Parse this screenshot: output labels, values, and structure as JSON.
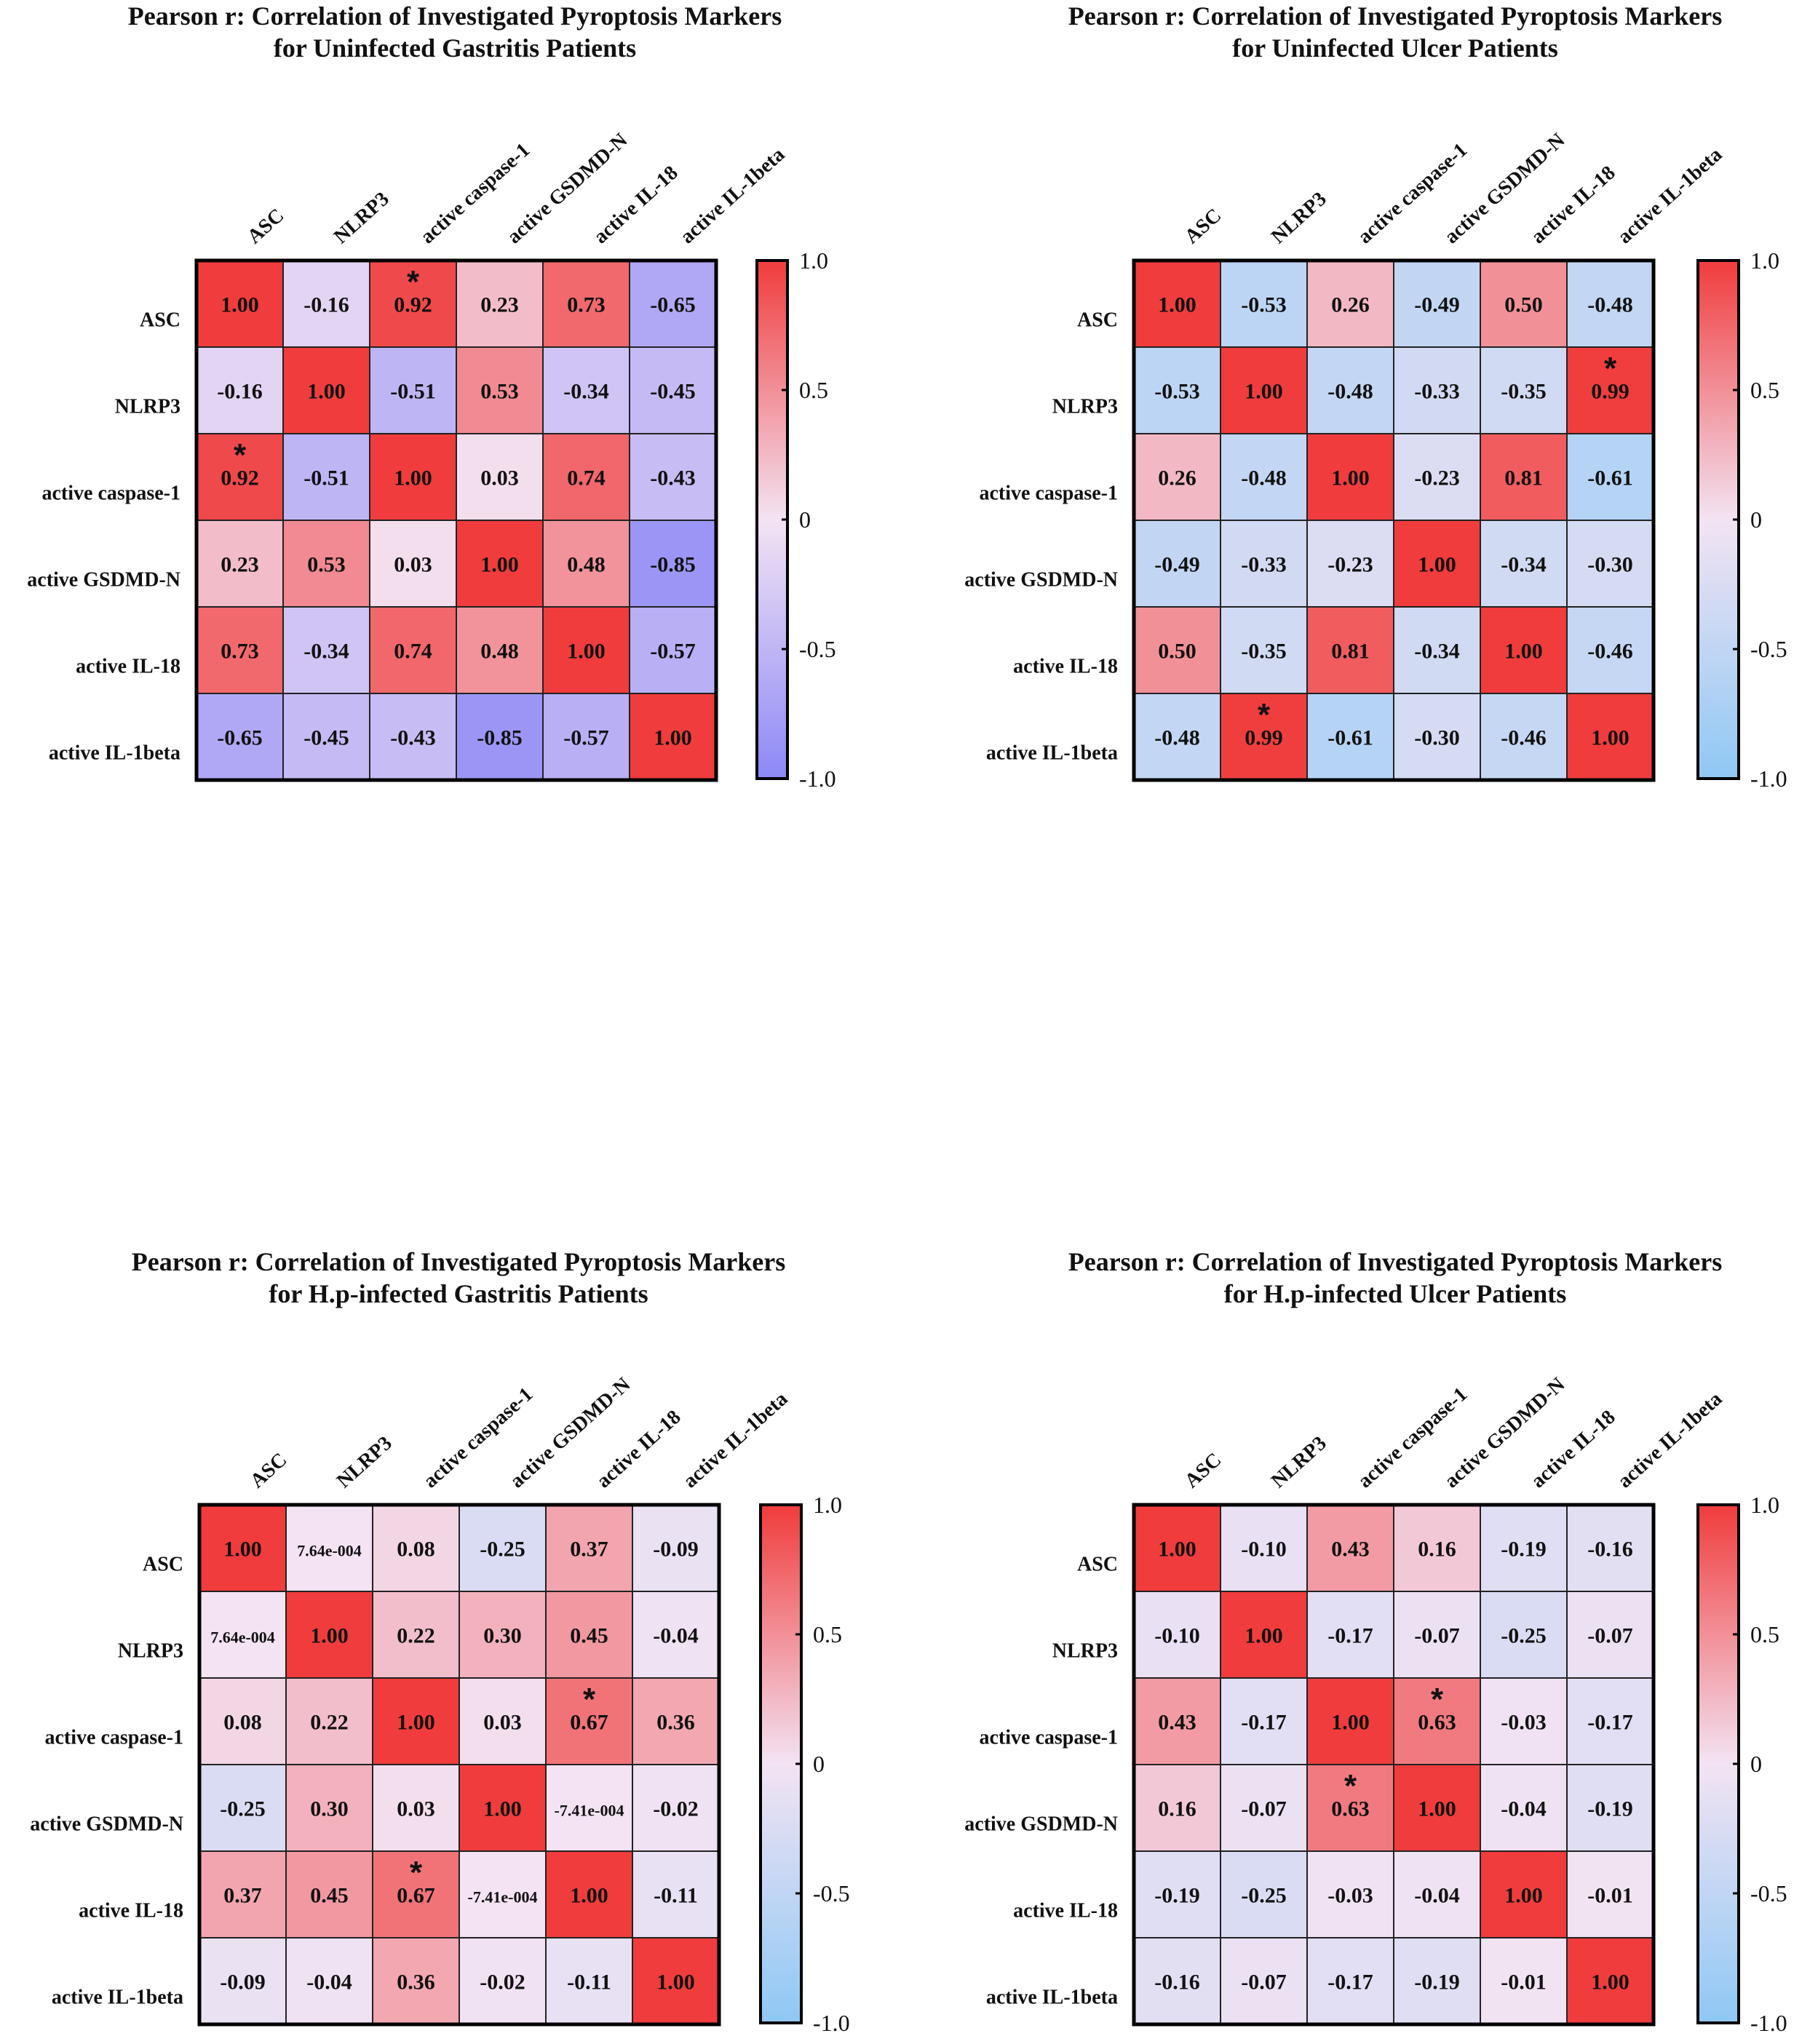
{
  "chart_data": [
    {
      "type": "heatmap",
      "title": [
        "Pearson r: Correlation of Investigated Pyroptosis Markers",
        "for Uninfected Gastritis Patients"
      ],
      "labels": [
        "ASC",
        "NLRP3",
        "active caspase-1",
        "active GSDMD-N",
        "active IL-18",
        "active IL-1beta"
      ],
      "values": [
        [
          1.0,
          -0.16,
          0.92,
          0.23,
          0.73,
          -0.65
        ],
        [
          -0.16,
          1.0,
          -0.51,
          0.53,
          -0.34,
          -0.45
        ],
        [
          0.92,
          -0.51,
          1.0,
          0.03,
          0.74,
          -0.43
        ],
        [
          0.23,
          0.53,
          0.03,
          1.0,
          0.48,
          -0.85
        ],
        [
          0.73,
          -0.34,
          0.74,
          0.48,
          1.0,
          -0.57
        ],
        [
          -0.65,
          -0.45,
          -0.43,
          -0.85,
          -0.57,
          1.0
        ]
      ],
      "display": [
        [
          "1.00",
          "-0.16",
          "0.92",
          "0.23",
          "0.73",
          "-0.65"
        ],
        [
          "-0.16",
          "1.00",
          "-0.51",
          "0.53",
          "-0.34",
          "-0.45"
        ],
        [
          "0.92",
          "-0.51",
          "1.00",
          "0.03",
          "0.74",
          "-0.43"
        ],
        [
          "0.23",
          "0.53",
          "0.03",
          "1.00",
          "0.48",
          "-0.85"
        ],
        [
          "0.73",
          "-0.34",
          "0.74",
          "0.48",
          "1.00",
          "-0.57"
        ],
        [
          "-0.65",
          "-0.45",
          "-0.43",
          "-0.85",
          "-0.57",
          "1.00"
        ]
      ],
      "significant": [
        [
          0,
          2
        ],
        [
          2,
          0
        ]
      ],
      "significance_marker": "*",
      "colorbar": {
        "ticks": [
          "1.0",
          "0.5",
          "0",
          "-0.5",
          "-1.0"
        ],
        "min": -1.0,
        "max": 1.0
      },
      "colors": {
        "high": "#f03c3c",
        "mid": "#f3e3f3",
        "low": "#8c88f6"
      }
    },
    {
      "type": "heatmap",
      "title": [
        "Pearson r: Correlation of Investigated Pyroptosis Markers",
        "for Uninfected Ulcer Patients"
      ],
      "labels": [
        "ASC",
        "NLRP3",
        "active caspase-1",
        "active GSDMD-N",
        "active IL-18",
        "active IL-1beta"
      ],
      "values": [
        [
          1.0,
          -0.53,
          0.26,
          -0.49,
          0.5,
          -0.48
        ],
        [
          -0.53,
          1.0,
          -0.48,
          -0.33,
          -0.35,
          0.99
        ],
        [
          0.26,
          -0.48,
          1.0,
          -0.23,
          0.81,
          -0.61
        ],
        [
          -0.49,
          -0.33,
          -0.23,
          1.0,
          -0.34,
          -0.3
        ],
        [
          0.5,
          -0.35,
          0.81,
          -0.34,
          1.0,
          -0.46
        ],
        [
          -0.48,
          0.99,
          -0.61,
          -0.3,
          -0.46,
          1.0
        ]
      ],
      "display": [
        [
          "1.00",
          "-0.53",
          "0.26",
          "-0.49",
          "0.50",
          "-0.48"
        ],
        [
          "-0.53",
          "1.00",
          "-0.48",
          "-0.33",
          "-0.35",
          "0.99"
        ],
        [
          "0.26",
          "-0.48",
          "1.00",
          "-0.23",
          "0.81",
          "-0.61"
        ],
        [
          "-0.49",
          "-0.33",
          "-0.23",
          "1.00",
          "-0.34",
          "-0.30"
        ],
        [
          "0.50",
          "-0.35",
          "0.81",
          "-0.34",
          "1.00",
          "-0.46"
        ],
        [
          "-0.48",
          "0.99",
          "-0.61",
          "-0.30",
          "-0.46",
          "1.00"
        ]
      ],
      "significant": [
        [
          1,
          5
        ],
        [
          5,
          1
        ]
      ],
      "significance_marker": "*",
      "colorbar": {
        "ticks": [
          "1.0",
          "0.5",
          "0",
          "-0.5",
          "-1.0"
        ],
        "min": -1.0,
        "max": 1.0
      },
      "colors": {
        "high": "#f03c3c",
        "mid": "#f3e3f3",
        "low": "#8ec8f4"
      }
    },
    {
      "type": "heatmap",
      "title": [
        "Pearson r: Correlation of Investigated Pyroptosis Markers",
        "for H.p-infected Gastritis Patients"
      ],
      "labels": [
        "ASC",
        "NLRP3",
        "active caspase-1",
        "active GSDMD-N",
        "active IL-18",
        "active IL-1beta"
      ],
      "values": [
        [
          1.0,
          0.000764,
          0.08,
          -0.25,
          0.37,
          -0.09
        ],
        [
          0.000764,
          1.0,
          0.22,
          0.3,
          0.45,
          -0.04
        ],
        [
          0.08,
          0.22,
          1.0,
          0.03,
          0.67,
          0.36
        ],
        [
          -0.25,
          0.3,
          0.03,
          1.0,
          -0.000741,
          -0.02
        ],
        [
          0.37,
          0.45,
          0.67,
          -0.000741,
          1.0,
          -0.11
        ],
        [
          -0.09,
          -0.04,
          0.36,
          -0.02,
          -0.11,
          1.0
        ]
      ],
      "display": [
        [
          "1.00",
          "7.64e-004",
          "0.08",
          "-0.25",
          "0.37",
          "-0.09"
        ],
        [
          "7.64e-004",
          "1.00",
          "0.22",
          "0.30",
          "0.45",
          "-0.04"
        ],
        [
          "0.08",
          "0.22",
          "1.00",
          "0.03",
          "0.67",
          "0.36"
        ],
        [
          "-0.25",
          "0.30",
          "0.03",
          "1.00",
          "-7.41e-004",
          "-0.02"
        ],
        [
          "0.37",
          "0.45",
          "0.67",
          "-7.41e-004",
          "1.00",
          "-0.11"
        ],
        [
          "-0.09",
          "-0.04",
          "0.36",
          "-0.02",
          "-0.11",
          "1.00"
        ]
      ],
      "significant": [
        [
          2,
          4
        ],
        [
          4,
          2
        ]
      ],
      "significance_marker": "*",
      "colorbar": {
        "ticks": [
          "1.0",
          "0.5",
          "0",
          "-0.5",
          "-1.0"
        ],
        "min": -1.0,
        "max": 1.0
      },
      "colors": {
        "high": "#f03c3c",
        "mid": "#f3e3f3",
        "low": "#8ec8f4"
      }
    },
    {
      "type": "heatmap",
      "title": [
        "Pearson r: Correlation of Investigated Pyroptosis Markers",
        "for H.p-infected Ulcer Patients"
      ],
      "labels": [
        "ASC",
        "NLRP3",
        "active caspase-1",
        "active GSDMD-N",
        "active IL-18",
        "active IL-1beta"
      ],
      "values": [
        [
          1.0,
          -0.1,
          0.43,
          0.16,
          -0.19,
          -0.16
        ],
        [
          -0.1,
          1.0,
          -0.17,
          -0.07,
          -0.25,
          -0.07
        ],
        [
          0.43,
          -0.17,
          1.0,
          0.63,
          -0.03,
          -0.17
        ],
        [
          0.16,
          -0.07,
          0.63,
          1.0,
          -0.04,
          -0.19
        ],
        [
          -0.19,
          -0.25,
          -0.03,
          -0.04,
          1.0,
          -0.01
        ],
        [
          -0.16,
          -0.07,
          -0.17,
          -0.19,
          -0.01,
          1.0
        ]
      ],
      "display": [
        [
          "1.00",
          "-0.10",
          "0.43",
          "0.16",
          "-0.19",
          "-0.16"
        ],
        [
          "-0.10",
          "1.00",
          "-0.17",
          "-0.07",
          "-0.25",
          "-0.07"
        ],
        [
          "0.43",
          "-0.17",
          "1.00",
          "0.63",
          "-0.03",
          "-0.17"
        ],
        [
          "0.16",
          "-0.07",
          "0.63",
          "1.00",
          "-0.04",
          "-0.19"
        ],
        [
          "-0.19",
          "-0.25",
          "-0.03",
          "-0.04",
          "1.00",
          "-0.01"
        ],
        [
          "-0.16",
          "-0.07",
          "-0.17",
          "-0.19",
          "-0.01",
          "1.00"
        ]
      ],
      "significant": [
        [
          2,
          3
        ],
        [
          3,
          2
        ]
      ],
      "significance_marker": "*",
      "colorbar": {
        "ticks": [
          "1.0",
          "0.5",
          "0",
          "-0.5",
          "-1.0"
        ],
        "min": -1.0,
        "max": 1.0
      },
      "colors": {
        "high": "#f03c3c",
        "mid": "#f3e3f3",
        "low": "#8ec8f4"
      }
    }
  ]
}
